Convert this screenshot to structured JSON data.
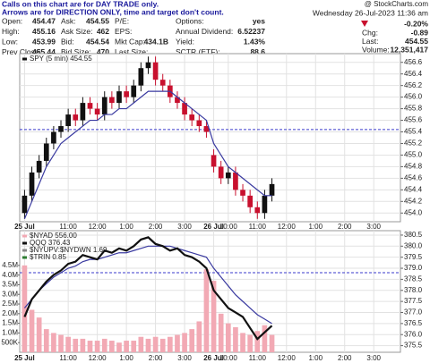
{
  "header": {
    "notice": [
      "Calls on this chart are for DAY TRADE only.",
      "Arrows are for DIRECTION ONLY, time and target don't count."
    ],
    "watermark": "@ StockCharts.com",
    "quote": [
      [
        {
          "label": "Open:",
          "value": "454.47"
        },
        {
          "label": "High:",
          "value": "455.16"
        },
        {
          "label": "Low:",
          "value": "453.99"
        },
        {
          "label": "Prev Close:",
          "value": "455.44"
        }
      ],
      [
        {
          "label": "Ask:",
          "value": "454.55"
        },
        {
          "label": "Ask Size:",
          "value": "462"
        },
        {
          "label": "Bid:",
          "value": "454.54"
        },
        {
          "label": "Bid Size:",
          "value": "470"
        }
      ],
      [
        {
          "label": "P/E:"
        },
        {
          "label": "EPS:"
        },
        {
          "label": "Mkt Cap:",
          "value": "434.1B"
        },
        {
          "label": "Last Size:"
        }
      ],
      [
        {
          "label": "Options:",
          "value": "yes"
        },
        {
          "label": "Annual Dividend:",
          "value": "6.52237"
        },
        {
          "label": "Yield:",
          "value": "1.43%"
        },
        {
          "label": "SCTR (ETF):",
          "value": "88.6"
        }
      ]
    ],
    "status": {
      "date": "Wednesday 26-Jul-2023 11:36 am",
      "change_pct": "-0.20%",
      "rows": [
        {
          "label": "Chg:",
          "value": "-0.89"
        },
        {
          "label": "Last:",
          "value": "454.55"
        },
        {
          "label": "Volume:",
          "value": "12,351,417"
        }
      ]
    }
  },
  "chart_data": [
    {
      "type": "stock",
      "xlim": [
        -2,
        155
      ],
      "xticks": [
        {
          "value": 0,
          "label": "25 Jul"
        },
        {
          "value": 18,
          "label": "11:00"
        },
        {
          "value": 30,
          "label": "12:00"
        },
        {
          "value": 42,
          "label": "1:00"
        },
        {
          "value": 54,
          "label": "2:00"
        },
        {
          "value": 66,
          "label": "3:00"
        },
        {
          "value": 78,
          "label": "26 Jul"
        },
        {
          "value": 84,
          "label": "10:00"
        },
        {
          "value": 96,
          "label": "11:00"
        },
        {
          "value": 108,
          "label": "12:00"
        },
        {
          "value": 120,
          "label": "1:00"
        },
        {
          "value": 132,
          "label": "2:00"
        },
        {
          "value": 144,
          "label": "3:00"
        }
      ],
      "ylim": [
        453.85,
        456.75
      ],
      "yticks": [
        {
          "value": 454.0,
          "label": "454.0"
        },
        454.2,
        454.4,
        454.6,
        454.8,
        {
          "value": 455.0,
          "label": "455.0"
        },
        455.2,
        455.4,
        455.6,
        455.8,
        {
          "value": 456.0,
          "label": "456.0"
        },
        456.2,
        456.4,
        456.6
      ],
      "grid": true,
      "reference_lines": [
        455.44
      ],
      "x": [
        0,
        3,
        6,
        9,
        12,
        15,
        18,
        21,
        24,
        27,
        30,
        33,
        36,
        39,
        42,
        45,
        48,
        51,
        54,
        57,
        60,
        63,
        66,
        69,
        72,
        75,
        78,
        81,
        84,
        87,
        90,
        93,
        96,
        99,
        102
      ],
      "series": [
        {
          "name": "SPY (5 min) 454.55",
          "type": "candlestick",
          "up_color": "#111111",
          "down_color": "#c8102e",
          "open": [
            454.0,
            454.3,
            454.7,
            454.9,
            455.2,
            455.4,
            455.5,
            455.7,
            455.6,
            455.9,
            455.8,
            455.7,
            456.0,
            455.9,
            456.1,
            456.0,
            456.2,
            456.5,
            456.6,
            456.3,
            456.2,
            456.0,
            455.9,
            455.7,
            455.6,
            455.5,
            455.0,
            454.8,
            454.6,
            454.7,
            454.4,
            454.3,
            454.1,
            454.0,
            454.3
          ],
          "high": [
            454.4,
            454.8,
            455.0,
            455.3,
            455.5,
            455.6,
            455.8,
            455.8,
            456.0,
            456.0,
            455.9,
            456.1,
            456.1,
            456.2,
            456.2,
            456.3,
            456.6,
            456.7,
            456.7,
            456.4,
            456.3,
            456.1,
            456.0,
            455.8,
            455.7,
            455.6,
            455.1,
            454.9,
            454.8,
            454.8,
            454.5,
            454.4,
            454.2,
            454.4,
            454.6
          ],
          "low": [
            453.9,
            454.2,
            454.6,
            454.8,
            455.1,
            455.3,
            455.4,
            455.5,
            455.5,
            455.7,
            455.6,
            455.6,
            455.8,
            455.8,
            455.9,
            455.9,
            456.1,
            456.4,
            456.2,
            456.1,
            455.9,
            455.8,
            455.6,
            455.5,
            455.4,
            455.3,
            454.7,
            454.5,
            454.5,
            454.3,
            454.2,
            454.0,
            453.9,
            453.9,
            454.2
          ],
          "close": [
            454.3,
            454.7,
            454.9,
            455.2,
            455.4,
            455.5,
            455.7,
            455.6,
            455.9,
            455.8,
            455.7,
            456.0,
            455.9,
            456.1,
            456.0,
            456.2,
            456.5,
            456.6,
            456.3,
            456.2,
            456.0,
            455.9,
            455.7,
            455.6,
            455.5,
            455.4,
            454.8,
            454.6,
            454.7,
            454.4,
            454.3,
            454.1,
            454.0,
            454.3,
            454.5
          ]
        },
        {
          "type": "line",
          "color": "#3a3aa0",
          "values": [
            453.9,
            454.2,
            454.5,
            454.8,
            455.0,
            455.2,
            455.3,
            455.4,
            455.5,
            455.6,
            455.6,
            455.7,
            455.7,
            455.8,
            455.8,
            455.9,
            456.0,
            456.1,
            456.1,
            456.1,
            456.1,
            456.0,
            455.9,
            455.8,
            455.7,
            455.6,
            455.2,
            455.0,
            454.8,
            454.7,
            454.6,
            454.5,
            454.4,
            454.3,
            454.3
          ]
        }
      ]
    },
    {
      "type": "stock",
      "xlim": [
        -2,
        155
      ],
      "xticks": [
        {
          "value": 0,
          "label": "25 Jul"
        },
        {
          "value": 18,
          "label": "11:00"
        },
        {
          "value": 30,
          "label": "12:00"
        },
        {
          "value": 42,
          "label": "1:00"
        },
        {
          "value": 54,
          "label": "2:00"
        },
        {
          "value": 66,
          "label": "3:00"
        },
        {
          "value": 78,
          "label": "26 Jul"
        },
        {
          "value": 84,
          "label": "10:00"
        },
        {
          "value": 96,
          "label": "11:00"
        },
        {
          "value": 108,
          "label": "12:00"
        },
        {
          "value": 120,
          "label": "1:00"
        },
        {
          "value": 132,
          "label": "2:00"
        },
        {
          "value": 144,
          "label": "3:00"
        }
      ],
      "ylim": [
        375.2,
        380.7
      ],
      "yticks": [
        375.5,
        {
          "value": 376.0,
          "label": "376.0"
        },
        376.5,
        {
          "value": 377.0,
          "label": "377.0"
        },
        377.5,
        {
          "value": 378.0,
          "label": "378.0"
        },
        378.5,
        {
          "value": 379.0,
          "label": "379.0"
        },
        379.5,
        {
          "value": 380.0,
          "label": "380.0"
        },
        380.5
      ],
      "y2lim": [
        0,
        6300000
      ],
      "y2ticks": [
        {
          "value": 500000,
          "label": "500K"
        },
        {
          "value": 1000000,
          "label": "1.0M"
        },
        {
          "value": 1500000,
          "label": "1.5M"
        },
        {
          "value": 2000000,
          "label": "2.0M"
        },
        {
          "value": 2500000,
          "label": "2.5M"
        },
        {
          "value": 3000000,
          "label": "3.0M"
        },
        {
          "value": 3500000,
          "label": "3.5M"
        },
        {
          "value": 4000000,
          "label": "4.0M"
        },
        {
          "value": 4500000,
          "label": "4.5M"
        }
      ],
      "grid": true,
      "reference_lines": [
        378.8
      ],
      "annotations": [
        "$NYUPV:$NYDWN 1.69",
        "$TRIN 0.85"
      ],
      "x": [
        0,
        3,
        6,
        9,
        12,
        15,
        18,
        21,
        24,
        27,
        30,
        33,
        36,
        39,
        42,
        45,
        48,
        51,
        54,
        57,
        60,
        63,
        66,
        69,
        72,
        75,
        78,
        81,
        84,
        87,
        90,
        93,
        96,
        99,
        102
      ],
      "series": [
        {
          "name": "$NYAD 556.00",
          "type": "bar",
          "axis": "y2",
          "color": "#f2a9b4",
          "values": [
            4500000,
            2200000,
            1800000,
            1200000,
            1000000,
            900000,
            800000,
            700000,
            700000,
            600000,
            600000,
            700000,
            600000,
            500000,
            600000,
            600000,
            800000,
            700000,
            800000,
            700000,
            800000,
            900000,
            1000000,
            1200000,
            1600000,
            4300000,
            3700000,
            2000000,
            1500000,
            1300000,
            1000000,
            900000,
            1100000,
            1400000,
            900000
          ]
        },
        {
          "type": "line",
          "color": "#3a3aa0",
          "values": [
            377.2,
            377.6,
            378.0,
            378.3,
            378.6,
            378.8,
            379.0,
            379.1,
            379.3,
            379.4,
            379.4,
            379.5,
            379.6,
            379.7,
            379.7,
            379.8,
            379.9,
            380.0,
            380.0,
            380.0,
            380.0,
            379.9,
            379.8,
            379.7,
            379.6,
            379.5,
            379.0,
            378.6,
            378.2,
            377.8,
            377.5,
            377.2,
            376.9,
            376.7,
            376.5
          ]
        },
        {
          "name": "QQQ 376.43",
          "type": "line",
          "color": "#111111",
          "width": 2.2,
          "values": [
            376.8,
            377.6,
            378.0,
            378.4,
            378.7,
            378.9,
            379.2,
            379.3,
            379.6,
            379.5,
            379.4,
            379.8,
            379.7,
            379.9,
            379.8,
            380.0,
            380.3,
            380.4,
            380.1,
            380.0,
            379.8,
            379.9,
            379.6,
            379.5,
            379.3,
            379.0,
            378.0,
            377.6,
            377.2,
            377.0,
            376.8,
            376.3,
            375.8,
            376.1,
            376.4
          ]
        }
      ]
    }
  ]
}
